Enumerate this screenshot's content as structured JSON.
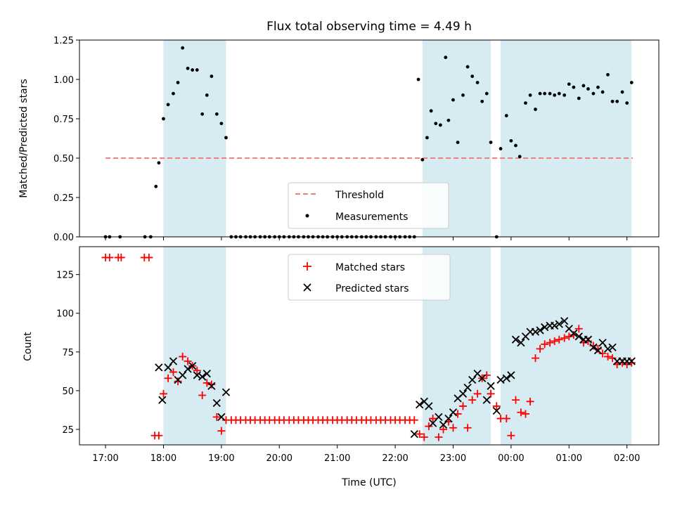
{
  "chart_data": {
    "type": "scatter",
    "title": "Flux total observing time = 4.49 h",
    "xlabel": "Time (UTC)",
    "x_ticks": [
      "17:00",
      "18:00",
      "19:00",
      "20:00",
      "21:00",
      "22:00",
      "23:00",
      "00:00",
      "01:00",
      "02:00"
    ],
    "x_range_hours": [
      16.55,
      26.55
    ],
    "shaded_intervals_hours": [
      [
        18.0,
        19.08
      ],
      [
        22.47,
        23.65
      ],
      [
        23.82,
        26.08
      ]
    ],
    "colors": {
      "shade": "#add8e6",
      "threshold": "#f08080",
      "measurements": "#000000",
      "matched": "#ff0000",
      "predicted": "#000000"
    },
    "panels": [
      {
        "ylabel": "Matched/Predicted stars",
        "ylim": [
          0,
          1.25
        ],
        "y_ticks": [
          "0.00",
          "0.25",
          "0.50",
          "0.75",
          "1.00",
          "1.25"
        ],
        "legend": {
          "placement": "lower-center",
          "threshold_label": "Threshold",
          "measurements_label": "Measurements"
        },
        "threshold": {
          "value": 0.5,
          "x_range_hours": [
            17.0,
            26.1
          ]
        },
        "measurements": {
          "x": [
            17.0,
            17.07,
            17.25,
            17.68,
            17.78,
            17.87,
            17.92,
            18.0,
            18.08,
            18.17,
            18.25,
            18.33,
            18.42,
            18.5,
            18.58,
            18.67,
            18.75,
            18.83,
            18.92,
            19.0,
            19.08,
            19.17,
            19.25,
            19.33,
            19.42,
            19.5,
            19.58,
            19.67,
            19.75,
            19.83,
            19.92,
            20.0,
            20.08,
            20.17,
            20.25,
            20.33,
            20.42,
            20.5,
            20.58,
            20.67,
            20.75,
            20.83,
            20.92,
            21.0,
            21.08,
            21.17,
            21.25,
            21.33,
            21.42,
            21.5,
            21.58,
            21.67,
            21.75,
            21.83,
            21.92,
            22.0,
            22.08,
            22.17,
            22.25,
            22.33,
            22.4,
            22.47,
            22.55,
            22.62,
            22.7,
            22.78,
            22.87,
            22.92,
            23.0,
            23.08,
            23.17,
            23.25,
            23.33,
            23.42,
            23.5,
            23.58,
            23.65,
            23.75,
            23.82,
            23.92,
            24.0,
            24.08,
            24.15,
            24.25,
            24.33,
            24.42,
            24.5,
            24.58,
            24.67,
            24.75,
            24.83,
            24.92,
            25.0,
            25.08,
            25.17,
            25.25,
            25.33,
            25.42,
            25.5,
            25.58,
            25.67,
            25.75,
            25.83,
            25.92,
            26.0,
            26.08
          ],
          "y": [
            0.0,
            0.0,
            0.0,
            0.0,
            0.0,
            0.32,
            0.47,
            0.75,
            0.84,
            0.91,
            0.98,
            1.2,
            1.07,
            1.06,
            1.06,
            0.78,
            0.9,
            1.02,
            0.78,
            0.72,
            0.63,
            0.0,
            0.0,
            0.0,
            0.0,
            0.0,
            0.0,
            0.0,
            0.0,
            0.0,
            0.0,
            0.0,
            0.0,
            0.0,
            0.0,
            0.0,
            0.0,
            0.0,
            0.0,
            0.0,
            0.0,
            0.0,
            0.0,
            0.0,
            0.0,
            0.0,
            0.0,
            0.0,
            0.0,
            0.0,
            0.0,
            0.0,
            0.0,
            0.0,
            0.0,
            0.0,
            0.0,
            0.0,
            0.0,
            0.0,
            1.0,
            0.49,
            0.63,
            0.8,
            0.72,
            0.71,
            1.14,
            0.74,
            0.87,
            0.6,
            0.9,
            1.08,
            1.02,
            0.98,
            0.86,
            0.91,
            0.6,
            0.0,
            0.56,
            0.77,
            0.61,
            0.58,
            0.51,
            0.85,
            0.9,
            0.81,
            0.91,
            0.91,
            0.91,
            0.9,
            0.91,
            0.9,
            0.97,
            0.95,
            0.88,
            0.96,
            0.94,
            0.91,
            0.95,
            0.92,
            1.03,
            0.86,
            0.86,
            0.92,
            0.85,
            0.98
          ]
        }
      },
      {
        "ylabel": "Count",
        "ylim": [
          15,
          143
        ],
        "y_ticks": [
          "25",
          "50",
          "75",
          "100",
          "125"
        ],
        "legend": {
          "placement": "upper-center",
          "matched_label": "Matched stars",
          "predicted_label": "Predicted stars"
        },
        "matched": {
          "x": [
            17.0,
            17.07,
            17.22,
            17.27,
            17.67,
            17.75,
            17.85,
            17.92,
            18.0,
            18.08,
            18.17,
            18.25,
            18.33,
            18.42,
            18.5,
            18.58,
            18.67,
            18.75,
            18.83,
            18.92,
            19.0,
            19.08,
            19.17,
            19.25,
            19.33,
            19.42,
            19.5,
            19.58,
            19.67,
            19.75,
            19.83,
            19.92,
            20.0,
            20.08,
            20.17,
            20.25,
            20.33,
            20.42,
            20.5,
            20.58,
            20.67,
            20.75,
            20.83,
            20.92,
            21.0,
            21.08,
            21.17,
            21.25,
            21.33,
            21.42,
            21.5,
            21.58,
            21.67,
            21.75,
            21.83,
            21.92,
            22.0,
            22.08,
            22.17,
            22.25,
            22.33,
            22.42,
            22.5,
            22.58,
            22.65,
            22.75,
            22.83,
            22.92,
            23.0,
            23.08,
            23.17,
            23.25,
            23.33,
            23.42,
            23.5,
            23.58,
            23.65,
            23.75,
            23.82,
            23.92,
            24.0,
            24.08,
            24.17,
            24.25,
            24.33,
            24.42,
            24.5,
            24.58,
            24.67,
            24.75,
            24.83,
            24.92,
            25.0,
            25.08,
            25.17,
            25.25,
            25.33,
            25.42,
            25.5,
            25.58,
            25.67,
            25.75,
            25.83,
            25.92,
            26.0,
            26.08
          ],
          "y": [
            136,
            136,
            136,
            136,
            136,
            136,
            21,
            21,
            48,
            58,
            62,
            56,
            72,
            69,
            66,
            63,
            47,
            55,
            54,
            33,
            24,
            31,
            31,
            31,
            31,
            31,
            31,
            31,
            31,
            31,
            31,
            31,
            31,
            31,
            31,
            31,
            31,
            31,
            31,
            31,
            31,
            31,
            31,
            31,
            31,
            31,
            31,
            31,
            31,
            31,
            31,
            31,
            31,
            31,
            31,
            31,
            31,
            31,
            31,
            31,
            31,
            22,
            20,
            27,
            32,
            20,
            25,
            30,
            26,
            35,
            40,
            26,
            44,
            48,
            58,
            60,
            48,
            40,
            32,
            32,
            21,
            44,
            36,
            35,
            43,
            71,
            77,
            80,
            81,
            82,
            83,
            84,
            85,
            86,
            90,
            81,
            82,
            79,
            77,
            74,
            72,
            71,
            67,
            68,
            67,
            68
          ]
        },
        "predicted": {
          "x": [
            17.92,
            17.98,
            18.08,
            18.17,
            18.25,
            18.33,
            18.42,
            18.5,
            18.58,
            18.67,
            18.75,
            18.83,
            18.92,
            19.0,
            19.08,
            22.33,
            22.42,
            22.5,
            22.58,
            22.65,
            22.75,
            22.83,
            22.92,
            23.0,
            23.08,
            23.17,
            23.25,
            23.33,
            23.42,
            23.5,
            23.58,
            23.65,
            23.75,
            23.82,
            23.92,
            24.0,
            24.08,
            24.17,
            24.25,
            24.33,
            24.42,
            24.5,
            24.58,
            24.67,
            24.75,
            24.83,
            24.92,
            25.0,
            25.08,
            25.17,
            25.25,
            25.33,
            25.42,
            25.5,
            25.58,
            25.67,
            25.75,
            25.83,
            25.92,
            26.0,
            26.08
          ],
          "y": [
            65,
            44,
            65,
            69,
            57,
            60,
            64,
            66,
            60,
            59,
            61,
            53,
            42,
            33,
            49,
            22,
            41,
            43,
            40,
            29,
            33,
            28,
            32,
            36,
            45,
            48,
            52,
            57,
            61,
            58,
            44,
            53,
            37,
            57,
            58,
            60,
            83,
            81,
            85,
            88,
            88,
            89,
            91,
            92,
            92,
            93,
            95,
            90,
            87,
            85,
            83,
            83,
            78,
            76,
            81,
            77,
            78,
            69,
            69,
            69,
            69
          ]
        }
      }
    ]
  }
}
